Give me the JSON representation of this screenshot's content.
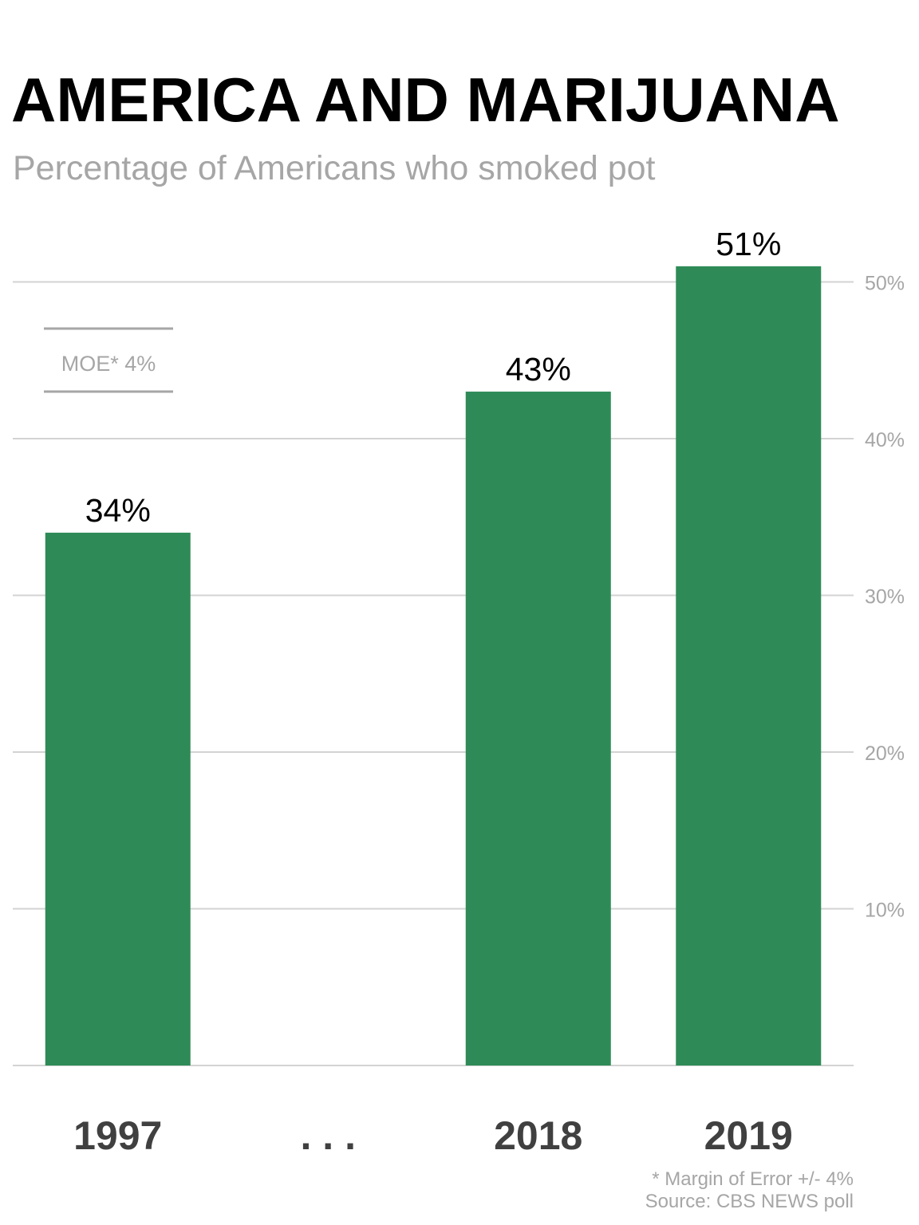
{
  "title": "AMERICA AND MARIJUANA",
  "subtitle": "Percentage of Americans who smoked pot",
  "colors": {
    "bar": "#2e8b57",
    "grid": "#d3d3d3",
    "muted": "#a6a6a6",
    "axis_label": "#404040",
    "value_label": "#000000"
  },
  "moe_box": {
    "label": "MOE* 4%"
  },
  "footnote": {
    "line1": "* Margin of Error +/- 4%",
    "line2": "Source: CBS NEWS poll"
  },
  "chart_data": {
    "type": "bar",
    "title": "AMERICA AND MARIJUANA",
    "subtitle": "Percentage of Americans who smoked pot",
    "categories": [
      "1997",
      ". . .",
      "2018",
      "2019"
    ],
    "values": [
      34,
      null,
      43,
      51
    ],
    "value_labels": [
      "34%",
      "",
      "43%",
      "51%"
    ],
    "ylim": [
      0,
      55
    ],
    "yticks": [
      10,
      20,
      30,
      40,
      50
    ],
    "ytick_labels": [
      "10%",
      "20%",
      "30%",
      "40%",
      "50%"
    ],
    "y_axis_side": "right",
    "grid": true,
    "legend": false
  }
}
